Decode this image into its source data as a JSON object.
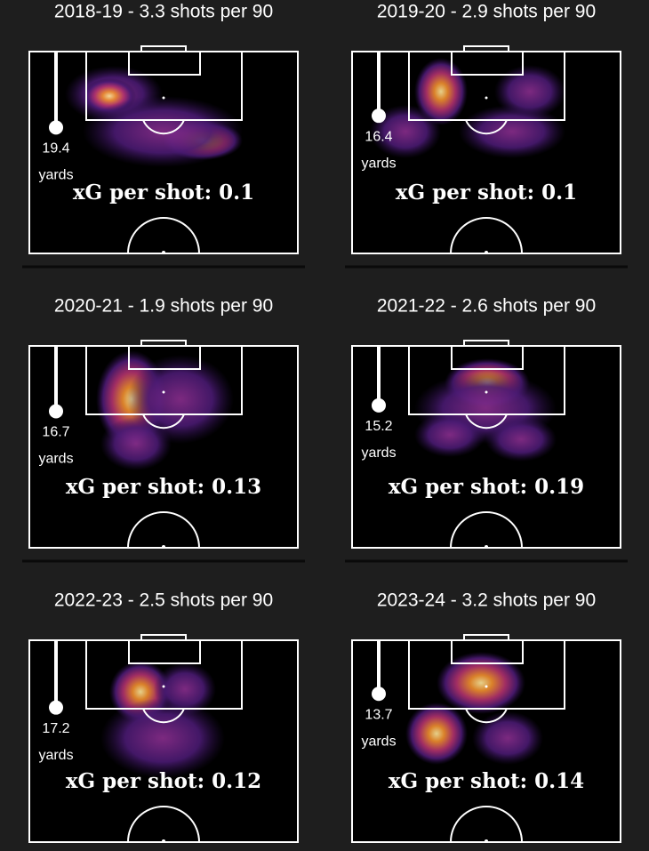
{
  "panels": [
    {
      "title": "2018-19 - 3.3 shots per 90",
      "distance": 19.4,
      "unit": "yards",
      "xg": "xG per shot: 0.1"
    },
    {
      "title": "2019-20 - 2.9 shots per 90",
      "distance": 16.4,
      "unit": "yards",
      "xg": "xG per shot: 0.1"
    },
    {
      "title": "2020-21 - 1.9 shots per 90",
      "distance": 16.7,
      "unit": "yards",
      "xg": "xG per shot: 0.13"
    },
    {
      "title": "2021-22 - 2.6 shots per 90",
      "distance": 15.2,
      "unit": "yards",
      "xg": "xG per shot: 0.19"
    },
    {
      "title": "2022-23 - 2.5 shots per 90",
      "distance": 17.2,
      "unit": "yards",
      "xg": "xG per shot: 0.12"
    },
    {
      "title": "2023-24 - 3.2 shots per 90",
      "distance": 13.7,
      "unit": "yards",
      "xg": "xG per shot: 0.14"
    }
  ]
}
